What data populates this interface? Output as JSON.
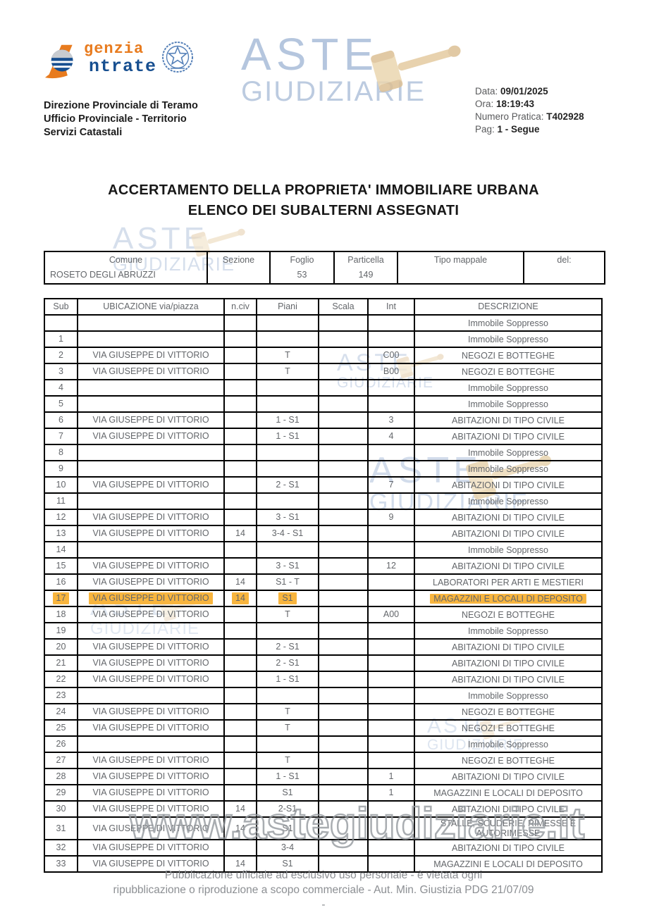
{
  "header": {
    "agency": {
      "name_top": "genzia",
      "name_bottom": "ntrate",
      "department": [
        "Direzione Provinciale di Teramo",
        "Ufficio Provinciale - Territorio",
        "Servizi Catastali"
      ]
    },
    "meta": [
      {
        "label": "Data:",
        "value": "09/01/2025"
      },
      {
        "label": "Ora:",
        "value": "18:19:43"
      },
      {
        "label": "Numero Pratica:",
        "value": "T402928"
      },
      {
        "label": "Pag:",
        "value": "1 - Segue"
      }
    ]
  },
  "aste_logo": {
    "line1": "ASTE",
    "line2": "GIUDIZIARIE"
  },
  "watermark": {
    "url": "www.astegiudiziarie.it"
  },
  "title": {
    "line1": "ACCERTAMENTO DELLA PROPRIETA' IMMOBILIARE URBANA",
    "line2": "ELENCO DEI SUBALTERNI ASSEGNATI"
  },
  "info_table": {
    "columns": [
      {
        "label": "Comune",
        "value": "ROSETO DEGLI ABRUZZI"
      },
      {
        "label": "Sezione",
        "value": ""
      },
      {
        "label": "Foglio",
        "value": "53"
      },
      {
        "label": "Particella",
        "value": "149"
      },
      {
        "label": "Tipo mappale",
        "value": ""
      },
      {
        "label": "del:",
        "value": ""
      }
    ]
  },
  "main_table": {
    "headers": [
      "Sub",
      "UBICAZIONE via/piazza",
      "n.civ",
      "Piani",
      "Scala",
      "Int",
      "DESCRIZIONE"
    ],
    "highlight_color": "#F8B53E",
    "rows": [
      {
        "cells": [
          "",
          "",
          "",
          "",
          "",
          "",
          "Immobile Soppresso"
        ]
      },
      {
        "cells": [
          "1",
          "",
          "",
          "",
          "",
          "",
          "Immobile Soppresso"
        ]
      },
      {
        "cells": [
          "2",
          "VIA GIUSEPPE DI VITTORIO",
          "",
          "T",
          "",
          "C00",
          "NEGOZI E BOTTEGHE"
        ]
      },
      {
        "cells": [
          "3",
          "VIA GIUSEPPE DI VITTORIO",
          "",
          "T",
          "",
          "B00",
          "NEGOZI E BOTTEGHE"
        ]
      },
      {
        "cells": [
          "4",
          "",
          "",
          "",
          "",
          "",
          "Immobile Soppresso"
        ]
      },
      {
        "cells": [
          "5",
          "",
          "",
          "",
          "",
          "",
          "Immobile Soppresso"
        ]
      },
      {
        "cells": [
          "6",
          "VIA GIUSEPPE DI VITTORIO",
          "",
          "1 - S1",
          "",
          "3",
          "ABITAZIONI DI TIPO CIVILE"
        ]
      },
      {
        "cells": [
          "7",
          "VIA GIUSEPPE DI VITTORIO",
          "",
          "1 - S1",
          "",
          "4",
          "ABITAZIONI DI TIPO CIVILE"
        ]
      },
      {
        "cells": [
          "8",
          "",
          "",
          "",
          "",
          "",
          "Immobile Soppresso"
        ]
      },
      {
        "cells": [
          "9",
          "",
          "",
          "",
          "",
          "",
          "Immobile Soppresso"
        ]
      },
      {
        "cells": [
          "10",
          "VIA GIUSEPPE DI VITTORIO",
          "",
          "2 - S1",
          "",
          "7",
          "ABITAZIONI DI TIPO CIVILE"
        ]
      },
      {
        "cells": [
          "11",
          "",
          "",
          "",
          "",
          "",
          "Immobile Soppresso"
        ]
      },
      {
        "cells": [
          "12",
          "VIA GIUSEPPE DI VITTORIO",
          "",
          "3 - S1",
          "",
          "9",
          "ABITAZIONI DI TIPO CIVILE"
        ]
      },
      {
        "cells": [
          "13",
          "VIA GIUSEPPE DI VITTORIO",
          "14",
          "3-4 - S1",
          "",
          "",
          "ABITAZIONI DI TIPO CIVILE"
        ]
      },
      {
        "cells": [
          "14",
          "",
          "",
          "",
          "",
          "",
          "Immobile Soppresso"
        ]
      },
      {
        "cells": [
          "15",
          "VIA GIUSEPPE DI VITTORIO",
          "",
          "3 - S1",
          "",
          "12",
          "ABITAZIONI DI TIPO CIVILE"
        ]
      },
      {
        "cells": [
          "16",
          "VIA GIUSEPPE DI VITTORIO",
          "14",
          "S1 - T",
          "",
          "",
          "LABORATORI PER ARTI E MESTIERI"
        ]
      },
      {
        "cells": [
          "17",
          "VIA GIUSEPPE DI VITTORIO",
          "14",
          "S1",
          "",
          "",
          "MAGAZZINI E LOCALI DI DEPOSITO"
        ],
        "highlight": true
      },
      {
        "cells": [
          "18",
          "VIA GIUSEPPE DI VITTORIO",
          "",
          "T",
          "",
          "A00",
          "NEGOZI E BOTTEGHE"
        ]
      },
      {
        "cells": [
          "19",
          "",
          "",
          "",
          "",
          "",
          "Immobile Soppresso"
        ]
      },
      {
        "cells": [
          "20",
          "VIA GIUSEPPE DI VITTORIO",
          "",
          "2 - S1",
          "",
          "",
          "ABITAZIONI DI TIPO CIVILE"
        ]
      },
      {
        "cells": [
          "21",
          "VIA GIUSEPPE DI VITTORIO",
          "",
          "2 - S1",
          "",
          "",
          "ABITAZIONI DI TIPO CIVILE"
        ]
      },
      {
        "cells": [
          "22",
          "VIA GIUSEPPE DI VITTORIO",
          "",
          "1 - S1",
          "",
          "",
          "ABITAZIONI DI TIPO CIVILE"
        ]
      },
      {
        "cells": [
          "23",
          "",
          "",
          "",
          "",
          "",
          "Immobile Soppresso"
        ]
      },
      {
        "cells": [
          "24",
          "VIA GIUSEPPE DI VITTORIO",
          "",
          "T",
          "",
          "",
          "NEGOZI E BOTTEGHE"
        ]
      },
      {
        "cells": [
          "25",
          "VIA GIUSEPPE DI VITTORIO",
          "",
          "T",
          "",
          "",
          "NEGOZI E BOTTEGHE"
        ]
      },
      {
        "cells": [
          "26",
          "",
          "",
          "",
          "",
          "",
          "Immobile Soppresso"
        ]
      },
      {
        "cells": [
          "27",
          "VIA GIUSEPPE DI VITTORIO",
          "",
          "T",
          "",
          "",
          "NEGOZI E BOTTEGHE"
        ]
      },
      {
        "cells": [
          "28",
          "VIA GIUSEPPE DI VITTORIO",
          "",
          "1 - S1",
          "",
          "1",
          "ABITAZIONI DI TIPO CIVILE"
        ]
      },
      {
        "cells": [
          "29",
          "VIA GIUSEPPE DI VITTORIO",
          "",
          "S1",
          "",
          "1",
          "MAGAZZINI E LOCALI DI DEPOSITO"
        ]
      },
      {
        "cells": [
          "30",
          "VIA GIUSEPPE DI VITTORIO",
          "14",
          "2-S1",
          "",
          "",
          "ABITAZIONI DI TIPO CIVILE"
        ]
      },
      {
        "cells": [
          "31",
          "VIA GIUSEPPE DI VITTORIO",
          "14",
          "S1",
          "",
          "",
          "STALLE, SCUDERIE, RIMESSE E AUTORIMESSE"
        ]
      },
      {
        "cells": [
          "32",
          "VIA GIUSEPPE DI VITTORIO",
          "",
          "3-4",
          "",
          "",
          "ABITAZIONI DI TIPO CIVILE"
        ]
      },
      {
        "cells": [
          "33",
          "VIA GIUSEPPE DI VITTORIO",
          "14",
          "S1",
          "",
          "",
          "MAGAZZINI E LOCALI DI DEPOSITO"
        ]
      }
    ]
  },
  "footer": {
    "line1": "Pubblicazione ufficiale ad esclusivo uso personale - è vietata ogni",
    "line2": "ripubblicazione o riproduzione a scopo commerciale - Aut. Min. Giustizia PDG 21/07/09",
    "line3": "-"
  },
  "colors": {
    "highlight": "#F8B53E",
    "brand_orange": "#E87B1E",
    "brand_navy": "#174F90",
    "watermark_blue": "#B5C6DE",
    "gavel_tan": "#E6D0A8"
  }
}
